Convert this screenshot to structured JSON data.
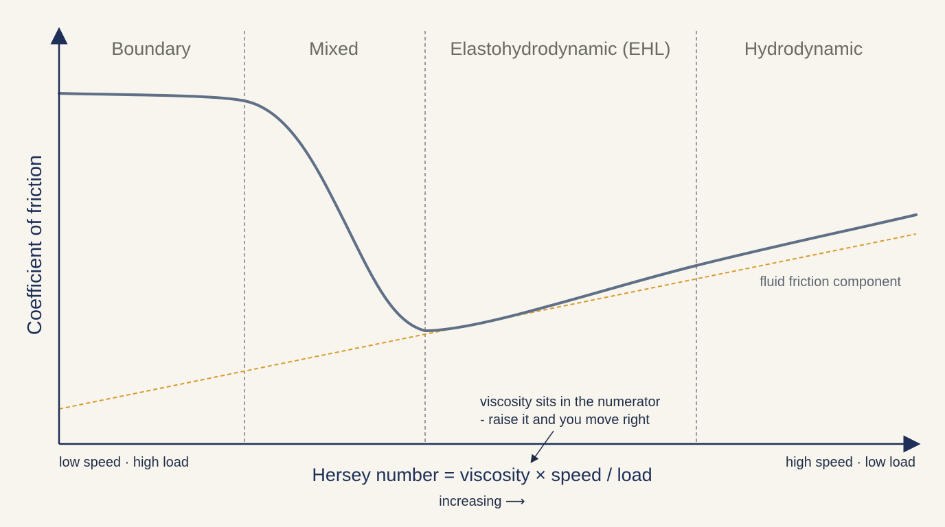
{
  "regimes": [
    {
      "name": "Boundary"
    },
    {
      "name": "Mixed"
    },
    {
      "name": "Elastohydrodynamic (EHL)"
    },
    {
      "name": "Hydrodynamic"
    }
  ],
  "y_axis_label": "Coefficient of friction",
  "x_axis_label": "Hersey number = viscosity × speed / load",
  "x_left_label": "low speed · high load",
  "x_right_label": "high speed · low load",
  "increasing_label": "increasing ⟶",
  "fluid_label": "fluid friction component",
  "annotation": {
    "line1": "viscosity sits in the numerator",
    "line2": "- raise it and you move right"
  },
  "colors": {
    "background": "#f7f5ee",
    "axis": "#1e2f58",
    "curve": "#5f6f86",
    "fluid_line": "#d99a2b",
    "divider": "#777777"
  }
}
